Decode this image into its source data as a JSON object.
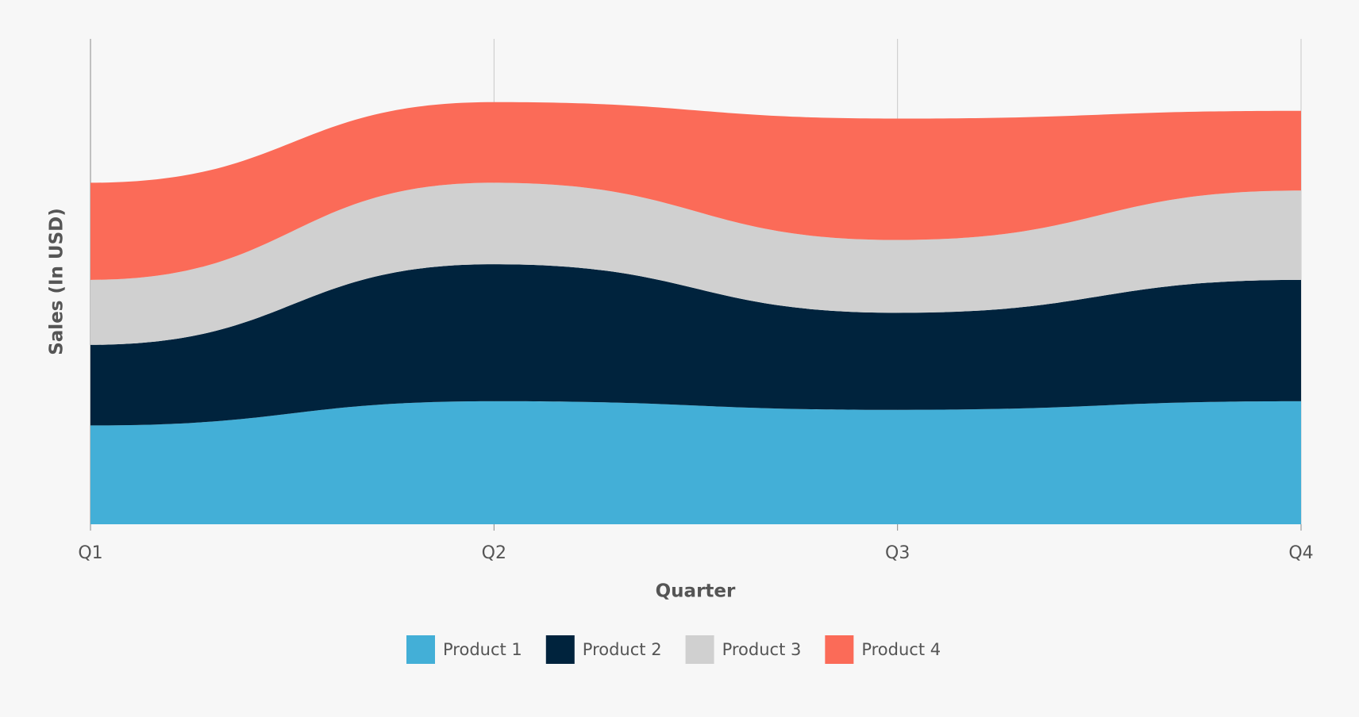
{
  "chart_data": {
    "type": "stacked-area",
    "x_label": "Quarter",
    "y_label": "Sales (In USD)",
    "categories": [
      "Q1",
      "Q2",
      "Q3",
      "Q4"
    ],
    "series": [
      {
        "name": "Product 1",
        "color": "#43afd7",
        "values": [
          11.4,
          14.2,
          13.2,
          14.2
        ]
      },
      {
        "name": "Product 2",
        "color": "#00233d",
        "values": [
          9.3,
          15.8,
          11.2,
          14.0
        ]
      },
      {
        "name": "Product 3",
        "color": "#d0d0d0",
        "values": [
          7.5,
          9.4,
          8.4,
          10.3
        ]
      },
      {
        "name": "Product 4",
        "color": "#fb6b58",
        "values": [
          11.2,
          9.3,
          14.0,
          9.2
        ]
      }
    ],
    "ylim": [
      0,
      56
    ],
    "grid": true,
    "legend": "bottom"
  }
}
